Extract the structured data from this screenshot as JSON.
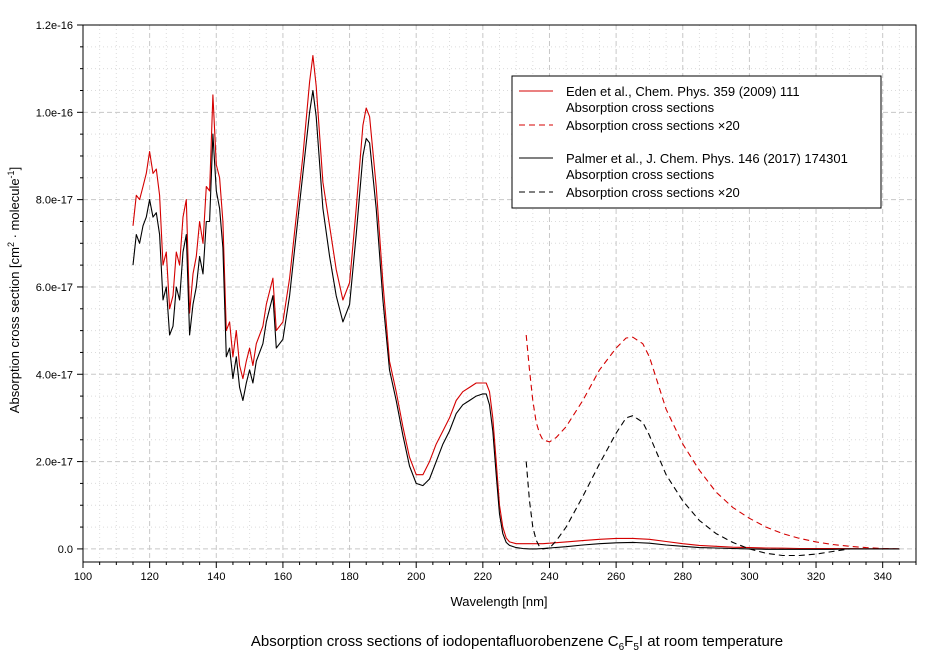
{
  "chart_data": {
    "type": "line",
    "title": "Absorption cross sections of iodopentafluorobenzene C6F5I at room temperature",
    "caption": {
      "prefix": "Absorption cross sections of iodopentafluorobenzene C",
      "sub1": "6",
      "mid": "F",
      "sub2": "5",
      "suffix": "I at room temperature"
    },
    "xlabel": "Wavelength [nm]",
    "ylabel": {
      "prefix": "Absorption cross section [cm",
      "sup1": "2",
      "mid": " · molecule",
      "sup2": "-1",
      "suffix": "]"
    },
    "xlim": [
      100,
      350
    ],
    "ylim": [
      -3e-18,
      1.2e-16
    ],
    "xticks": [
      100,
      120,
      140,
      160,
      180,
      200,
      220,
      240,
      260,
      280,
      300,
      320,
      340
    ],
    "xtick_labels": [
      "100",
      "120",
      "140",
      "160",
      "180",
      "200",
      "220",
      "240",
      "260",
      "280",
      "300",
      "320",
      "340"
    ],
    "yticks": [
      0,
      2e-17,
      4e-17,
      6e-17,
      8e-17,
      1e-16,
      1.2e-16
    ],
    "ytick_labels": [
      "0.0",
      "2.0e-17",
      "4.0e-17",
      "6.0e-17",
      "8.0e-17",
      "1.0e-16",
      "1.2e-16"
    ],
    "grid": true,
    "legend_position": "top-right",
    "legend": [
      {
        "name": "Eden et al., Chem. Phys. 359 (2009) 111",
        "color": "#d40000",
        "style": "none"
      },
      {
        "name": "Absorption cross sections",
        "color": "#d40000",
        "style": "solid"
      },
      {
        "name": "Absorption cross sections ×20",
        "color": "#d40000",
        "style": "dashed"
      },
      {
        "name": "Palmer et al., J. Chem. Phys. 146 (2017) 174301",
        "color": "#000000",
        "style": "none"
      },
      {
        "name": "Absorption cross sections",
        "color": "#000000",
        "style": "solid"
      },
      {
        "name": "Absorption cross sections ×20",
        "color": "#000000",
        "style": "dashed"
      }
    ],
    "series": [
      {
        "name": "Eden et al. — Absorption cross sections",
        "color": "#d40000",
        "style": "solid",
        "x": [
          115,
          116,
          117,
          118,
          119,
          120,
          121,
          122,
          123,
          124,
          125,
          126,
          127,
          128,
          129,
          130,
          131,
          132,
          133,
          134,
          135,
          136,
          137,
          138,
          139,
          140,
          141,
          142,
          143,
          144,
          145,
          146,
          147,
          148,
          149,
          150,
          151,
          152,
          153,
          154,
          155,
          156,
          157,
          158,
          160,
          162,
          164,
          166,
          168,
          169,
          170,
          172,
          174,
          176,
          178,
          180,
          182,
          184,
          185,
          186,
          188,
          190,
          192,
          194,
          196,
          198,
          200,
          202,
          204,
          206,
          208,
          210,
          212,
          214,
          216,
          218,
          220,
          221,
          222,
          223,
          224,
          225,
          226,
          227,
          228,
          230,
          232,
          234,
          236,
          238,
          240,
          245,
          250,
          255,
          260,
          265,
          270,
          275,
          280,
          285,
          290,
          295,
          300,
          305,
          310,
          315,
          320,
          325,
          330,
          335,
          340,
          345
        ],
        "y": [
          7.4e-17,
          8.1e-17,
          8e-17,
          8.3e-17,
          8.6e-17,
          9.1e-17,
          8.6e-17,
          8.7e-17,
          8.1e-17,
          6.5e-17,
          6.8e-17,
          5.5e-17,
          5.8e-17,
          6.8e-17,
          6.5e-17,
          7.6e-17,
          8e-17,
          5.4e-17,
          6.3e-17,
          6.7e-17,
          7.5e-17,
          7e-17,
          8.3e-17,
          8.2e-17,
          1.04e-16,
          8.8e-17,
          8.5e-17,
          7.5e-17,
          5e-17,
          5.2e-17,
          4.4e-17,
          5e-17,
          4.2e-17,
          3.9e-17,
          4.3e-17,
          4.6e-17,
          4.2e-17,
          4.7e-17,
          4.9e-17,
          5.1e-17,
          5.6e-17,
          5.9e-17,
          6.2e-17,
          5e-17,
          5.2e-17,
          6.2e-17,
          7.6e-17,
          9e-17,
          1.07e-16,
          1.13e-16,
          1.06e-16,
          8.4e-17,
          7.4e-17,
          6.4e-17,
          5.7e-17,
          6.1e-17,
          7.8e-17,
          9.7e-17,
          1.01e-16,
          9.9e-17,
          8.3e-17,
          6.1e-17,
          4.3e-17,
          3.6e-17,
          2.8e-17,
          2.1e-17,
          1.7e-17,
          1.7e-17,
          2e-17,
          2.4e-17,
          2.7e-17,
          3e-17,
          3.4e-17,
          3.6e-17,
          3.7e-17,
          3.8e-17,
          3.8e-17,
          3.8e-17,
          3.6e-17,
          3e-17,
          2e-17,
          1e-17,
          5e-18,
          2.5e-18,
          1.6e-18,
          1.2e-18,
          1.2e-18,
          1.2e-18,
          1.2e-18,
          1.2e-18,
          1.3e-18,
          1.6e-18,
          1.9e-18,
          2.2e-18,
          2.4e-18,
          2.4e-18,
          2.2e-18,
          1.7e-18,
          1.2e-18,
          8e-19,
          6e-19,
          4e-19,
          3e-19,
          2e-19,
          1.5e-19,
          1e-19,
          8e-20,
          6e-20,
          4e-20,
          3e-20,
          2e-20,
          1e-20
        ]
      },
      {
        "name": "Eden et al. — Absorption cross sections ×20",
        "color": "#d40000",
        "style": "dashed",
        "x": [
          233,
          234,
          235,
          236,
          237,
          238,
          240,
          242,
          245,
          250,
          255,
          260,
          263,
          265,
          268,
          270,
          275,
          280,
          285,
          290,
          295,
          300,
          305,
          310,
          315,
          320,
          325,
          330,
          335,
          340,
          345
        ],
        "y": [
          4.9e-17,
          4.1e-17,
          3.4e-17,
          2.9e-17,
          2.65e-17,
          2.5e-17,
          2.45e-17,
          2.55e-17,
          2.8e-17,
          3.4e-17,
          4.1e-17,
          4.6e-17,
          4.83e-17,
          4.85e-17,
          4.7e-17,
          4.4e-17,
          3.2e-17,
          2.4e-17,
          1.8e-17,
          1.3e-17,
          9.5e-18,
          7e-18,
          5e-18,
          3.5e-18,
          2.4e-18,
          1.6e-18,
          1e-18,
          6e-19,
          3e-19,
          1e-19,
          0
        ]
      },
      {
        "name": "Palmer et al. — Absorption cross sections",
        "color": "#000000",
        "style": "solid",
        "x": [
          115,
          116,
          117,
          118,
          119,
          120,
          121,
          122,
          123,
          124,
          125,
          126,
          127,
          128,
          129,
          130,
          131,
          132,
          133,
          134,
          135,
          136,
          137,
          138,
          139,
          140,
          141,
          142,
          143,
          144,
          145,
          146,
          147,
          148,
          149,
          150,
          151,
          152,
          153,
          154,
          155,
          156,
          157,
          158,
          160,
          162,
          164,
          166,
          168,
          169,
          170,
          172,
          174,
          176,
          178,
          180,
          182,
          184,
          185,
          186,
          188,
          190,
          192,
          194,
          196,
          198,
          200,
          202,
          204,
          206,
          208,
          210,
          212,
          214,
          216,
          218,
          220,
          221,
          222,
          223,
          224,
          225,
          226,
          227,
          228,
          230,
          232,
          234,
          236,
          238,
          240,
          245,
          250,
          255,
          260,
          265,
          270,
          275,
          280,
          285,
          290,
          295,
          300,
          305,
          310,
          315,
          320,
          325,
          330,
          335,
          340,
          345
        ],
        "y": [
          6.5e-17,
          7.2e-17,
          7e-17,
          7.4e-17,
          7.6e-17,
          8e-17,
          7.6e-17,
          7.7e-17,
          7.2e-17,
          5.7e-17,
          6e-17,
          4.9e-17,
          5.1e-17,
          6e-17,
          5.7e-17,
          6.8e-17,
          7.2e-17,
          4.9e-17,
          5.6e-17,
          6e-17,
          6.7e-17,
          6.3e-17,
          7.5e-17,
          7.5e-17,
          9.5e-17,
          8.2e-17,
          7.8e-17,
          6.9e-17,
          4.4e-17,
          4.6e-17,
          3.9e-17,
          4.4e-17,
          3.7e-17,
          3.4e-17,
          3.8e-17,
          4.1e-17,
          3.8e-17,
          4.3e-17,
          4.5e-17,
          4.7e-17,
          5.2e-17,
          5.5e-17,
          5.8e-17,
          4.6e-17,
          4.8e-17,
          5.8e-17,
          7.2e-17,
          8.6e-17,
          1e-16,
          1.05e-16,
          9.9e-17,
          7.8e-17,
          6.7e-17,
          5.8e-17,
          5.2e-17,
          5.6e-17,
          7.2e-17,
          9e-17,
          9.4e-17,
          9.3e-17,
          7.8e-17,
          5.7e-17,
          4.1e-17,
          3.4e-17,
          2.6e-17,
          1.9e-17,
          1.5e-17,
          1.45e-17,
          1.6e-17,
          2e-17,
          2.4e-17,
          2.7e-17,
          3.1e-17,
          3.3e-17,
          3.4e-17,
          3.5e-17,
          3.55e-17,
          3.55e-17,
          3.3e-17,
          2.7e-17,
          1.7e-17,
          8e-18,
          3.5e-18,
          1.5e-18,
          8e-19,
          3e-19,
          1e-19,
          0,
          0,
          1e-19,
          2e-19,
          5e-19,
          9e-19,
          1.2e-18,
          1.4e-18,
          1.5e-18,
          1.3e-18,
          9e-19,
          6e-19,
          3e-19,
          2e-19,
          1e-19,
          0,
          -1e-19,
          -1e-19,
          -1e-19,
          -1e-19,
          -1e-19,
          0,
          0,
          0,
          0
        ]
      },
      {
        "name": "Palmer et al. — Absorption cross sections ×20",
        "color": "#000000",
        "style": "dashed",
        "x": [
          233,
          234,
          235,
          236,
          237,
          238,
          240,
          242,
          245,
          250,
          255,
          260,
          263,
          265,
          268,
          270,
          275,
          280,
          285,
          290,
          295,
          300,
          305,
          310,
          315,
          320,
          325,
          330
        ],
        "y": [
          2e-17,
          1.1e-17,
          5e-18,
          2e-18,
          5e-19,
          0,
          2e-19,
          1.8e-18,
          5e-18,
          1.2e-17,
          1.95e-17,
          2.65e-17,
          3e-17,
          3.05e-17,
          2.9e-17,
          2.6e-17,
          1.7e-17,
          1.1e-17,
          6.5e-18,
          3.5e-18,
          1.5e-18,
          0,
          -1e-18,
          -1.5e-18,
          -1.5e-18,
          -1.2e-18,
          -6e-19,
          0
        ]
      }
    ]
  }
}
